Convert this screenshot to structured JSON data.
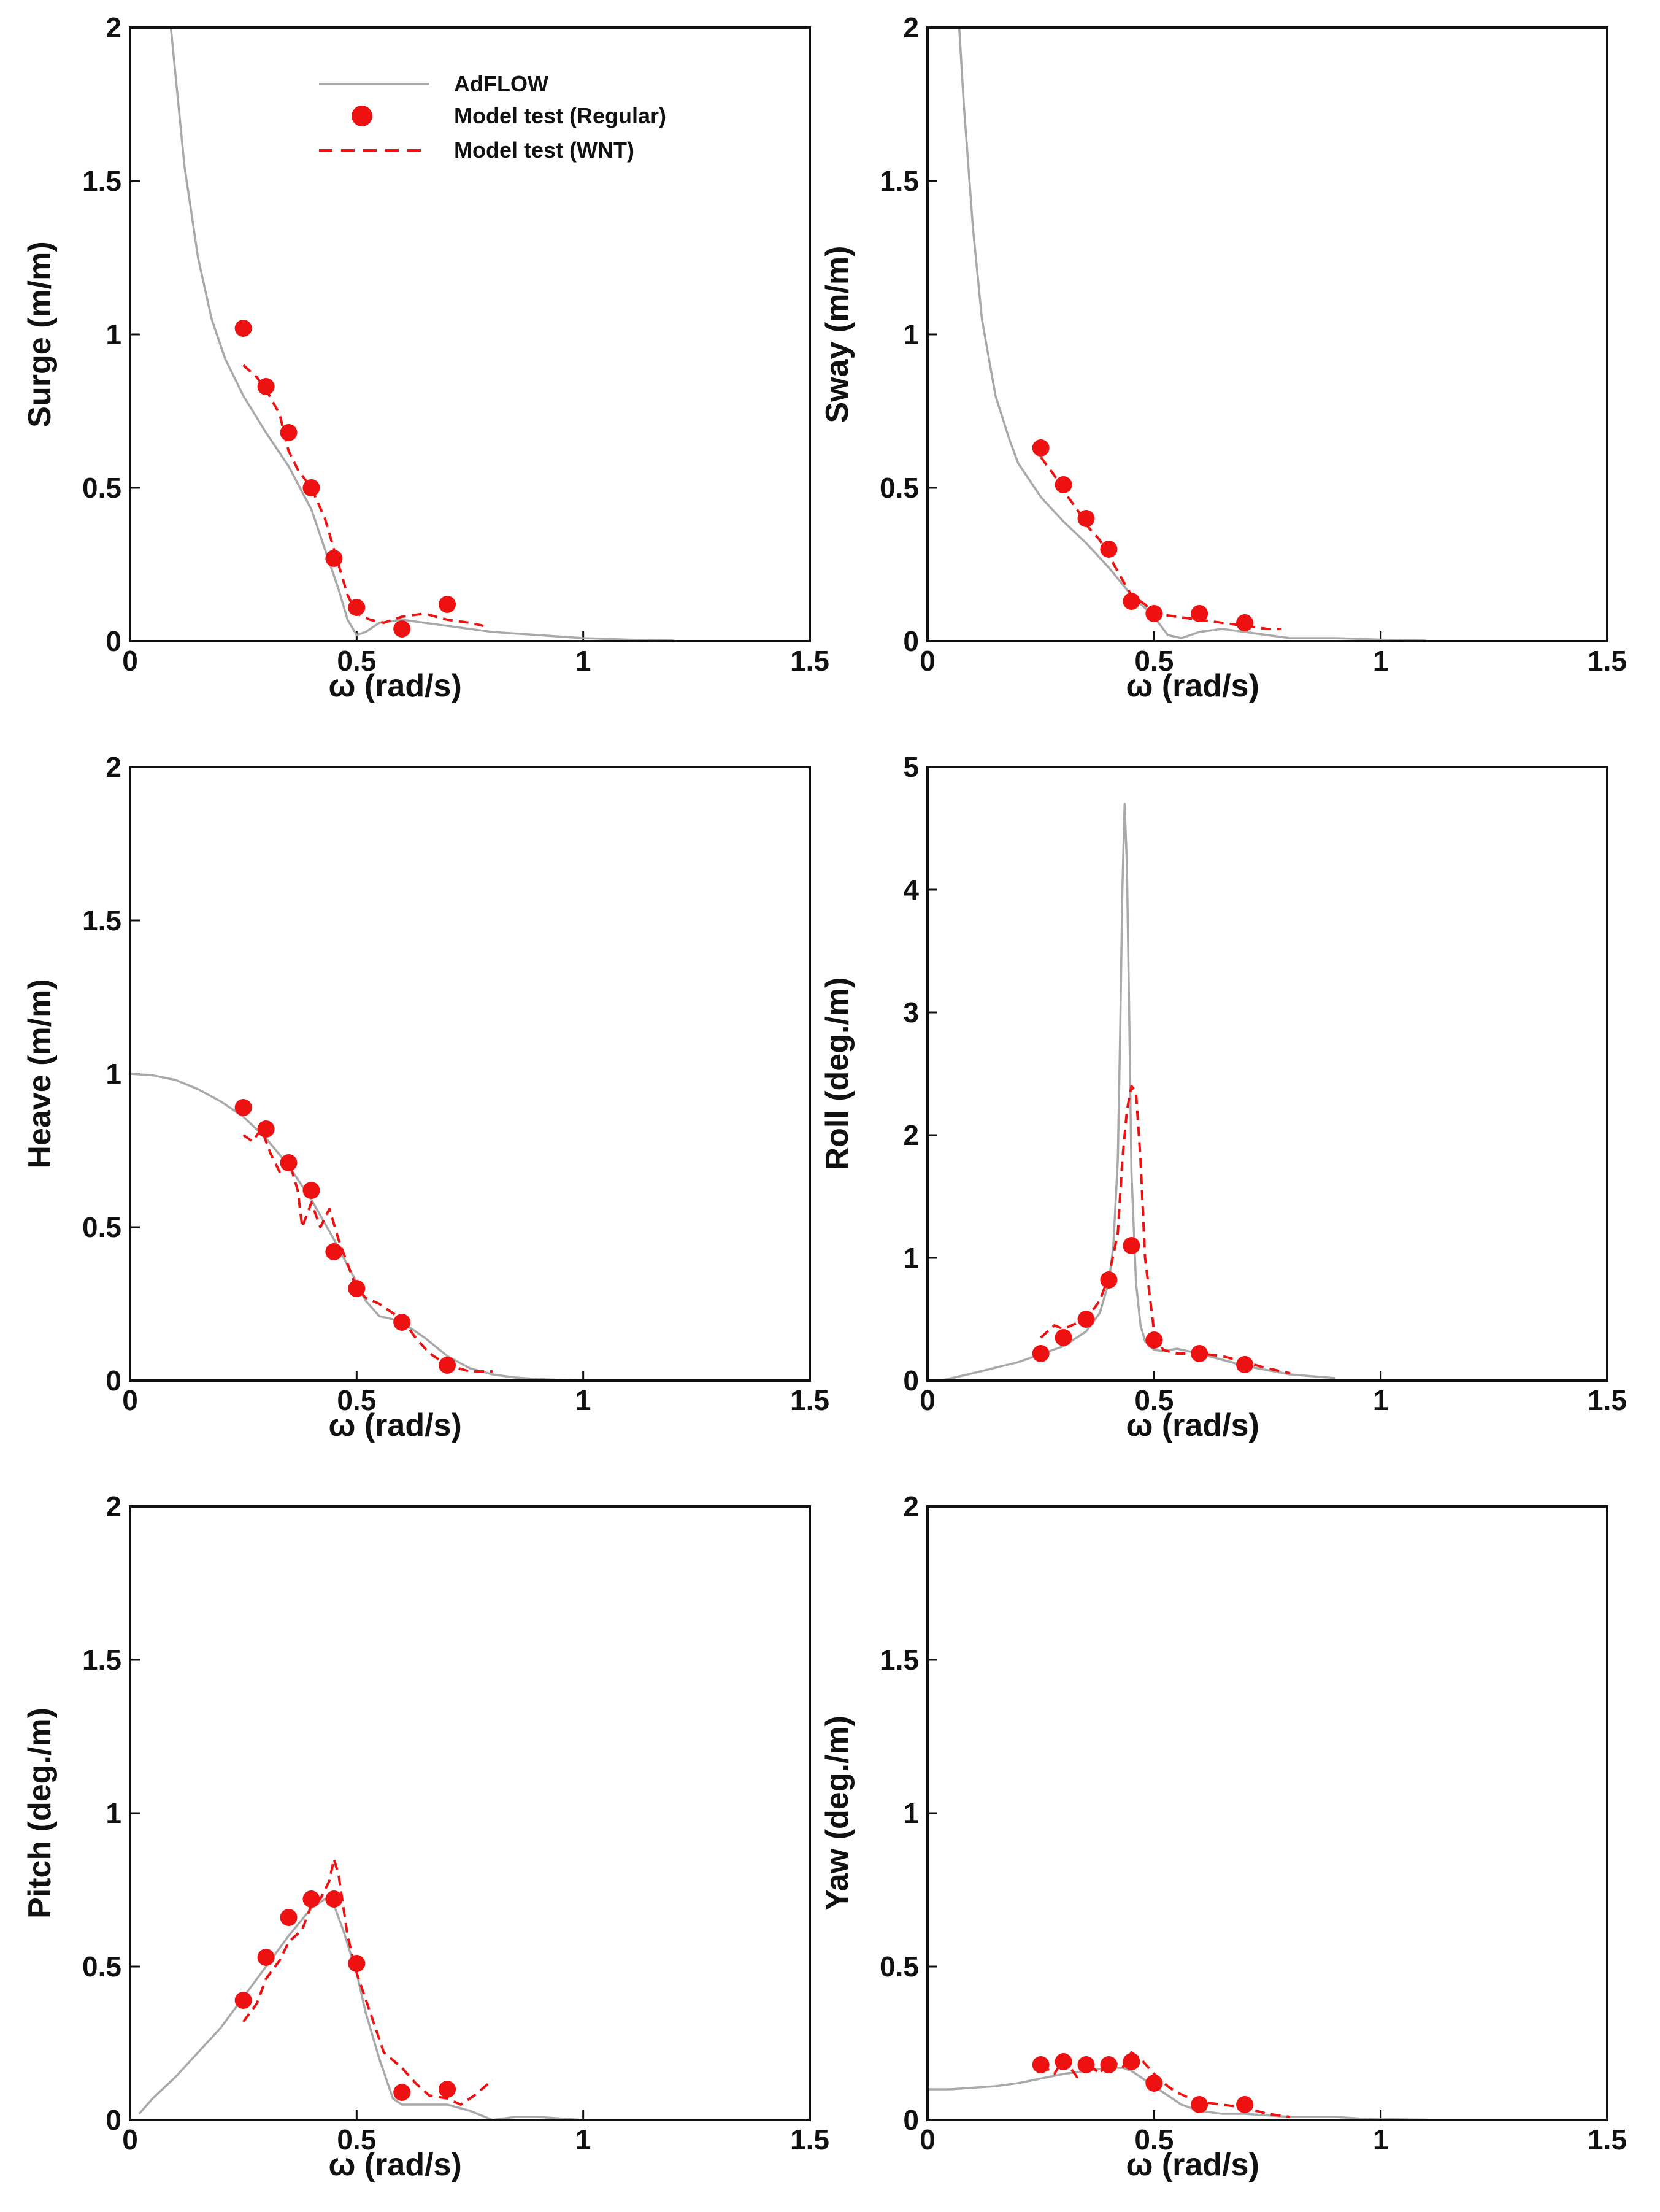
{
  "figure_title": "",
  "colors": {
    "adflow": "#a9a9a9",
    "model_test": "#ee1111",
    "axis": "#111111",
    "background": "#ffffff"
  },
  "legend": {
    "items": [
      {
        "label": "AdFLOW",
        "style": "solid-line",
        "color": "#a9a9a9"
      },
      {
        "label": "Model test (Regular)",
        "style": "marker",
        "color": "#ee1111"
      },
      {
        "label": "Model test (WNT)",
        "style": "dashed-line",
        "color": "#ee1111"
      }
    ]
  },
  "chart_data": [
    {
      "id": "surge",
      "type": "line",
      "xlabel": "ω (rad/s)",
      "ylabel": "Surge (m/m)",
      "xlim": [
        0,
        1.5
      ],
      "ylim": [
        0,
        2
      ],
      "xticks": [
        0,
        0.5,
        1,
        1.5
      ],
      "xtick_labels": [
        "0",
        "0.5",
        "1",
        "1.5"
      ],
      "yticks": [
        0,
        0.5,
        1,
        1.5,
        2
      ],
      "ytick_labels": [
        "0",
        "0.5",
        "1",
        "1.5",
        "2"
      ],
      "legend": true,
      "series": [
        {
          "name": "AdFLOW",
          "style": "solid",
          "x": [
            0.09,
            0.1,
            0.12,
            0.15,
            0.18,
            0.21,
            0.25,
            0.3,
            0.35,
            0.4,
            0.43,
            0.46,
            0.48,
            0.5,
            0.52,
            0.55,
            0.6,
            0.65,
            0.7,
            0.8,
            0.9,
            1.0,
            1.1,
            1.2
          ],
          "y": [
            2.0,
            1.85,
            1.55,
            1.25,
            1.05,
            0.92,
            0.8,
            0.68,
            0.57,
            0.43,
            0.3,
            0.17,
            0.07,
            0.02,
            0.03,
            0.06,
            0.07,
            0.06,
            0.05,
            0.03,
            0.02,
            0.01,
            0.005,
            0.002
          ]
        },
        {
          "name": "Model test (WNT)",
          "style": "dashed",
          "x": [
            0.25,
            0.28,
            0.3,
            0.33,
            0.35,
            0.37,
            0.4,
            0.43,
            0.45,
            0.48,
            0.5,
            0.53,
            0.56,
            0.6,
            0.65,
            0.7,
            0.75,
            0.78
          ],
          "y": [
            0.9,
            0.86,
            0.82,
            0.74,
            0.62,
            0.56,
            0.5,
            0.4,
            0.3,
            0.15,
            0.09,
            0.07,
            0.06,
            0.08,
            0.09,
            0.07,
            0.06,
            0.05
          ]
        },
        {
          "name": "Model test (Regular)",
          "style": "marker",
          "x": [
            0.25,
            0.3,
            0.35,
            0.4,
            0.45,
            0.5,
            0.6,
            0.7
          ],
          "y": [
            1.02,
            0.83,
            0.68,
            0.5,
            0.27,
            0.11,
            0.04,
            0.12
          ]
        }
      ]
    },
    {
      "id": "sway",
      "type": "line",
      "xlabel": "ω (rad/s)",
      "ylabel": "Sway (m/m)",
      "xlim": [
        0,
        1.5
      ],
      "ylim": [
        0,
        2
      ],
      "xticks": [
        0,
        0.5,
        1,
        1.5
      ],
      "xtick_labels": [
        "0",
        "0.5",
        "1",
        "1.5"
      ],
      "yticks": [
        0,
        0.5,
        1,
        1.5,
        2
      ],
      "ytick_labels": [
        "0",
        "0.5",
        "1",
        "1.5",
        "2"
      ],
      "legend": false,
      "series": [
        {
          "name": "AdFLOW",
          "style": "solid",
          "x": [
            0.07,
            0.08,
            0.1,
            0.12,
            0.15,
            0.18,
            0.2,
            0.25,
            0.3,
            0.35,
            0.4,
            0.45,
            0.5,
            0.53,
            0.56,
            0.6,
            0.65,
            0.7,
            0.75,
            0.8,
            0.9,
            1.0,
            1.1
          ],
          "y": [
            2.0,
            1.75,
            1.35,
            1.05,
            0.8,
            0.66,
            0.58,
            0.47,
            0.39,
            0.32,
            0.24,
            0.15,
            0.08,
            0.02,
            0.01,
            0.03,
            0.04,
            0.03,
            0.02,
            0.01,
            0.01,
            0.005,
            0.002
          ]
        },
        {
          "name": "Model test (WNT)",
          "style": "dashed",
          "x": [
            0.25,
            0.28,
            0.3,
            0.33,
            0.35,
            0.38,
            0.4,
            0.43,
            0.45,
            0.48,
            0.5,
            0.55,
            0.6,
            0.65,
            0.7,
            0.75,
            0.78
          ],
          "y": [
            0.6,
            0.54,
            0.49,
            0.43,
            0.38,
            0.33,
            0.28,
            0.2,
            0.15,
            0.12,
            0.09,
            0.08,
            0.07,
            0.06,
            0.05,
            0.04,
            0.04
          ]
        },
        {
          "name": "Model test (Regular)",
          "style": "marker",
          "x": [
            0.25,
            0.3,
            0.35,
            0.4,
            0.45,
            0.5,
            0.6,
            0.7
          ],
          "y": [
            0.63,
            0.51,
            0.4,
            0.3,
            0.13,
            0.09,
            0.09,
            0.06
          ]
        }
      ]
    },
    {
      "id": "heave",
      "type": "line",
      "xlabel": "ω (rad/s)",
      "ylabel": "Heave (m/m)",
      "xlim": [
        0,
        1.5
      ],
      "ylim": [
        0,
        2
      ],
      "xticks": [
        0,
        0.5,
        1,
        1.5
      ],
      "xtick_labels": [
        "0",
        "0.5",
        "1",
        "1.5"
      ],
      "yticks": [
        0,
        0.5,
        1,
        1.5,
        2
      ],
      "ytick_labels": [
        "0",
        "0.5",
        "1",
        "1.5",
        "2"
      ],
      "legend": false,
      "series": [
        {
          "name": "AdFLOW",
          "style": "solid",
          "x": [
            0,
            0.05,
            0.1,
            0.15,
            0.2,
            0.25,
            0.3,
            0.35,
            0.4,
            0.45,
            0.5,
            0.52,
            0.55,
            0.58,
            0.6,
            0.65,
            0.7,
            0.75,
            0.8,
            0.85,
            0.9,
            0.95,
            1.0
          ],
          "y": [
            1.0,
            0.995,
            0.98,
            0.95,
            0.91,
            0.86,
            0.79,
            0.7,
            0.59,
            0.46,
            0.32,
            0.26,
            0.21,
            0.2,
            0.19,
            0.14,
            0.08,
            0.04,
            0.02,
            0.01,
            0.005,
            0.002,
            0.0
          ]
        },
        {
          "name": "Model test (WNT)",
          "style": "dashed",
          "x": [
            0.25,
            0.27,
            0.29,
            0.31,
            0.33,
            0.35,
            0.37,
            0.38,
            0.4,
            0.42,
            0.44,
            0.46,
            0.48,
            0.5,
            0.52,
            0.55,
            0.58,
            0.6,
            0.63,
            0.66,
            0.7,
            0.75,
            0.8
          ],
          "y": [
            0.8,
            0.78,
            0.82,
            0.74,
            0.68,
            0.72,
            0.62,
            0.5,
            0.58,
            0.5,
            0.56,
            0.46,
            0.38,
            0.3,
            0.27,
            0.25,
            0.22,
            0.2,
            0.14,
            0.09,
            0.05,
            0.03,
            0.03
          ]
        },
        {
          "name": "Model test (Regular)",
          "style": "marker",
          "x": [
            0.25,
            0.3,
            0.35,
            0.4,
            0.45,
            0.5,
            0.6,
            0.7
          ],
          "y": [
            0.89,
            0.82,
            0.71,
            0.62,
            0.42,
            0.3,
            0.19,
            0.05
          ]
        }
      ]
    },
    {
      "id": "roll",
      "type": "line",
      "xlabel": "ω (rad/s)",
      "ylabel": "Roll (deg./m)",
      "xlim": [
        0,
        1.5
      ],
      "ylim": [
        0,
        5
      ],
      "xticks": [
        0,
        0.5,
        1,
        1.5
      ],
      "xtick_labels": [
        "0",
        "0.5",
        "1",
        "1.5"
      ],
      "yticks": [
        0,
        1,
        2,
        3,
        4,
        5
      ],
      "ytick_labels": [
        "0",
        "1",
        "2",
        "3",
        "4",
        "5"
      ],
      "legend": false,
      "series": [
        {
          "name": "AdFLOW",
          "style": "solid",
          "x": [
            0.03,
            0.1,
            0.2,
            0.3,
            0.35,
            0.38,
            0.4,
            0.41,
            0.42,
            0.425,
            0.43,
            0.435,
            0.44,
            0.445,
            0.45,
            0.46,
            0.47,
            0.48,
            0.5,
            0.52,
            0.55,
            0.6,
            0.65,
            0.7,
            0.8,
            0.9
          ],
          "y": [
            0.0,
            0.06,
            0.15,
            0.28,
            0.4,
            0.55,
            0.8,
            1.1,
            1.8,
            2.8,
            4.0,
            4.7,
            4.2,
            3.0,
            1.7,
            0.8,
            0.45,
            0.32,
            0.25,
            0.24,
            0.26,
            0.22,
            0.17,
            0.12,
            0.05,
            0.02
          ]
        },
        {
          "name": "Model test (WNT)",
          "style": "dashed",
          "x": [
            0.25,
            0.28,
            0.3,
            0.33,
            0.36,
            0.38,
            0.4,
            0.42,
            0.43,
            0.44,
            0.45,
            0.46,
            0.47,
            0.48,
            0.5,
            0.52,
            0.55,
            0.6,
            0.65,
            0.7,
            0.75,
            0.8
          ],
          "y": [
            0.35,
            0.45,
            0.42,
            0.47,
            0.55,
            0.65,
            0.85,
            1.2,
            1.8,
            2.2,
            2.4,
            2.35,
            1.8,
            1.0,
            0.4,
            0.25,
            0.22,
            0.22,
            0.2,
            0.15,
            0.1,
            0.06
          ]
        },
        {
          "name": "Model test (Regular)",
          "style": "marker",
          "x": [
            0.25,
            0.3,
            0.35,
            0.4,
            0.45,
            0.5,
            0.6,
            0.7
          ],
          "y": [
            0.22,
            0.35,
            0.5,
            0.82,
            1.1,
            0.33,
            0.22,
            0.13
          ]
        }
      ]
    },
    {
      "id": "pitch",
      "type": "line",
      "xlabel": "ω (rad/s)",
      "ylabel": "Pitch (deg./m)",
      "xlim": [
        0,
        1.5
      ],
      "ylim": [
        0,
        2
      ],
      "xticks": [
        0,
        0.5,
        1,
        1.5
      ],
      "xtick_labels": [
        "0",
        "0.5",
        "1",
        "1.5"
      ],
      "yticks": [
        0,
        0.5,
        1,
        1.5,
        2
      ],
      "ytick_labels": [
        "0",
        "0.5",
        "1",
        "1.5",
        "2"
      ],
      "legend": false,
      "series": [
        {
          "name": "AdFLOW",
          "style": "solid",
          "x": [
            0.02,
            0.05,
            0.1,
            0.15,
            0.2,
            0.25,
            0.3,
            0.35,
            0.4,
            0.43,
            0.45,
            0.47,
            0.5,
            0.52,
            0.55,
            0.58,
            0.6,
            0.65,
            0.7,
            0.75,
            0.8,
            0.85,
            0.9,
            0.95,
            1.0
          ],
          "y": [
            0.02,
            0.07,
            0.14,
            0.22,
            0.3,
            0.4,
            0.5,
            0.6,
            0.69,
            0.72,
            0.7,
            0.62,
            0.48,
            0.35,
            0.2,
            0.07,
            0.05,
            0.05,
            0.05,
            0.03,
            0.0,
            0.01,
            0.01,
            0.005,
            0.0
          ]
        },
        {
          "name": "Model test (WNT)",
          "style": "dashed",
          "x": [
            0.25,
            0.28,
            0.3,
            0.33,
            0.35,
            0.38,
            0.4,
            0.42,
            0.44,
            0.45,
            0.46,
            0.48,
            0.5,
            0.53,
            0.56,
            0.6,
            0.63,
            0.66,
            0.7,
            0.73,
            0.76,
            0.8
          ],
          "y": [
            0.32,
            0.38,
            0.46,
            0.52,
            0.58,
            0.62,
            0.7,
            0.72,
            0.78,
            0.85,
            0.8,
            0.6,
            0.48,
            0.35,
            0.22,
            0.17,
            0.12,
            0.08,
            0.07,
            0.05,
            0.08,
            0.13
          ]
        },
        {
          "name": "Model test (Regular)",
          "style": "marker",
          "x": [
            0.25,
            0.3,
            0.35,
            0.4,
            0.45,
            0.5,
            0.6,
            0.7
          ],
          "y": [
            0.39,
            0.53,
            0.66,
            0.72,
            0.72,
            0.51,
            0.09,
            0.1
          ]
        }
      ]
    },
    {
      "id": "yaw",
      "type": "line",
      "xlabel": "ω (rad/s)",
      "ylabel": "Yaw (deg./m)",
      "xlim": [
        0,
        1.5
      ],
      "ylim": [
        0,
        2
      ],
      "xticks": [
        0,
        0.5,
        1,
        1.5
      ],
      "xtick_labels": [
        "0",
        "0.5",
        "1",
        "1.5"
      ],
      "yticks": [
        0,
        0.5,
        1,
        1.5,
        2
      ],
      "ytick_labels": [
        "0",
        "0.5",
        "1",
        "1.5",
        "2"
      ],
      "legend": false,
      "series": [
        {
          "name": "AdFLOW",
          "style": "solid",
          "x": [
            0,
            0.05,
            0.1,
            0.15,
            0.2,
            0.25,
            0.3,
            0.35,
            0.4,
            0.43,
            0.45,
            0.47,
            0.5,
            0.53,
            0.56,
            0.6,
            0.65,
            0.7,
            0.75,
            0.8,
            0.85,
            0.9,
            0.95,
            1.0,
            1.1
          ],
          "y": [
            0.1,
            0.1,
            0.105,
            0.11,
            0.12,
            0.135,
            0.15,
            0.16,
            0.17,
            0.17,
            0.16,
            0.14,
            0.11,
            0.08,
            0.05,
            0.03,
            0.02,
            0.02,
            0.015,
            0.01,
            0.01,
            0.01,
            0.005,
            0.003,
            0.001
          ]
        },
        {
          "name": "Model test (WNT)",
          "style": "dashed",
          "x": [
            0.25,
            0.28,
            0.3,
            0.33,
            0.35,
            0.38,
            0.4,
            0.43,
            0.45,
            0.47,
            0.5,
            0.53,
            0.55,
            0.58,
            0.6,
            0.65,
            0.7,
            0.75,
            0.8
          ],
          "y": [
            0.18,
            0.15,
            0.2,
            0.14,
            0.19,
            0.15,
            0.2,
            0.17,
            0.22,
            0.2,
            0.15,
            0.11,
            0.09,
            0.07,
            0.06,
            0.05,
            0.04,
            0.02,
            0.01
          ]
        },
        {
          "name": "Model test (Regular)",
          "style": "marker",
          "x": [
            0.25,
            0.3,
            0.35,
            0.4,
            0.45,
            0.5,
            0.6,
            0.7
          ],
          "y": [
            0.18,
            0.19,
            0.18,
            0.18,
            0.19,
            0.12,
            0.05,
            0.05
          ]
        }
      ]
    }
  ]
}
